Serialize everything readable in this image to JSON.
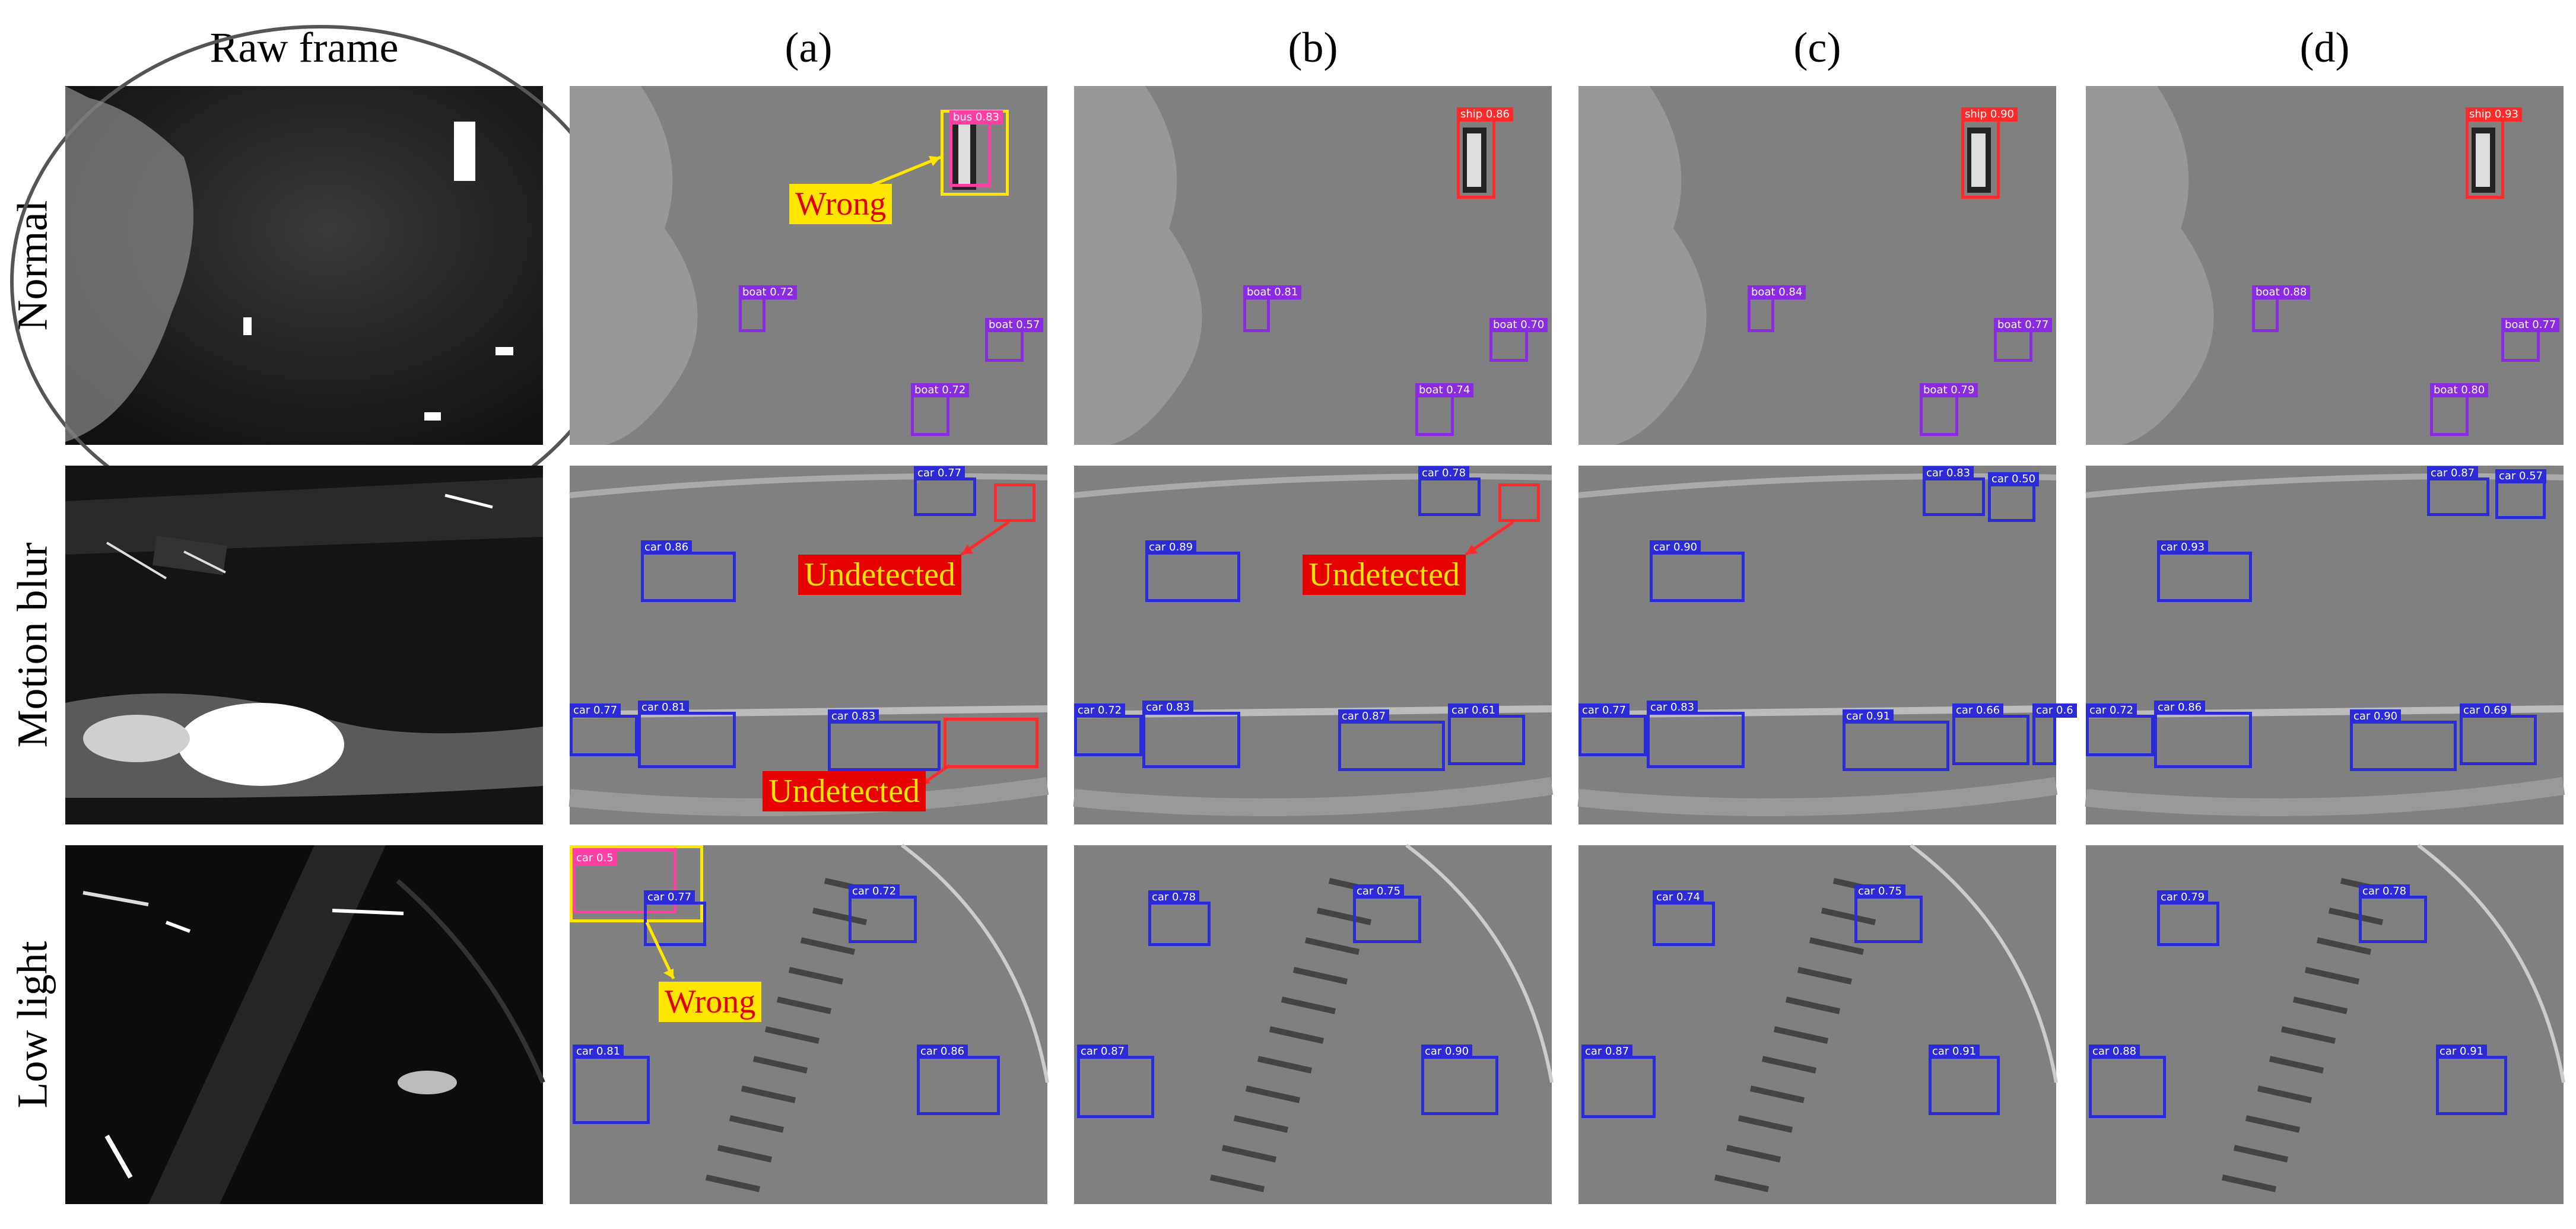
{
  "columns": [
    "Raw frame",
    "(a)",
    "(b)",
    "(c)",
    "(d)"
  ],
  "rows": [
    "Normal",
    "Motion blur",
    "Low light"
  ],
  "callouts": {
    "wrong": "Wrong",
    "undetected": "Undetected"
  },
  "normal": {
    "a": {
      "bus": "bus 0.83",
      "boat1": "boat 0.72",
      "boat2": "boat 0.57",
      "boat3": "boat 0.72"
    },
    "b": {
      "ship": "ship 0.86",
      "boat1": "boat 0.81",
      "boat2": "boat 0.70",
      "boat3": "boat 0.74"
    },
    "c": {
      "ship": "ship 0.90",
      "boat1": "boat 0.84",
      "boat2": "boat 0.77",
      "boat3": "boat 0.79"
    },
    "d": {
      "ship": "ship 0.93",
      "boat1": "boat 0.88",
      "boat2": "boat 0.77",
      "boat3": "boat 0.80"
    }
  },
  "motion": {
    "a": {
      "top": "car 0.77",
      "mid": "car 0.86",
      "b1": "car 0.77",
      "b2": "car 0.81",
      "b3": "car 0.83"
    },
    "b": {
      "top": "car 0.78",
      "mid": "car 0.89",
      "b1": "car 0.72",
      "b2": "car 0.83",
      "b3": "car 0.87",
      "b4": "car 0.61"
    },
    "c": {
      "top": "car 0.83",
      "top2": "car 0.50",
      "mid": "car 0.90",
      "b1": "car 0.77",
      "b2": "car 0.83",
      "b3": "car 0.91",
      "b4": "car 0.66",
      "b5": "car 0.6"
    },
    "d": {
      "top": "car 0.87",
      "top2": "car 0.57",
      "mid": "car 0.93",
      "b1": "car 0.72",
      "b2": "car 0.86",
      "b3": "car 0.90",
      "b4": "car 0.69"
    }
  },
  "low": {
    "a": {
      "t1": "car 0.77",
      "t2": "car 0.72",
      "b1": "car 0.81",
      "b2": "car 0.86",
      "wrongbox": "car 0.5"
    },
    "b": {
      "t1": "car 0.78",
      "t2": "car 0.75",
      "b1": "car 0.87",
      "b2": "car 0.90"
    },
    "c": {
      "t1": "car 0.74",
      "t2": "car 0.75",
      "b1": "car 0.87",
      "b2": "car 0.91"
    },
    "d": {
      "t1": "car 0.79",
      "t2": "car 0.78",
      "b1": "car 0.88",
      "b2": "car 0.91"
    }
  },
  "colors": {
    "car_box": "#2b2bd8",
    "boat_box": "#8a2be2",
    "ship_box": "#ff2a2a",
    "highlight": "#ffe600",
    "error": "#e60000"
  }
}
